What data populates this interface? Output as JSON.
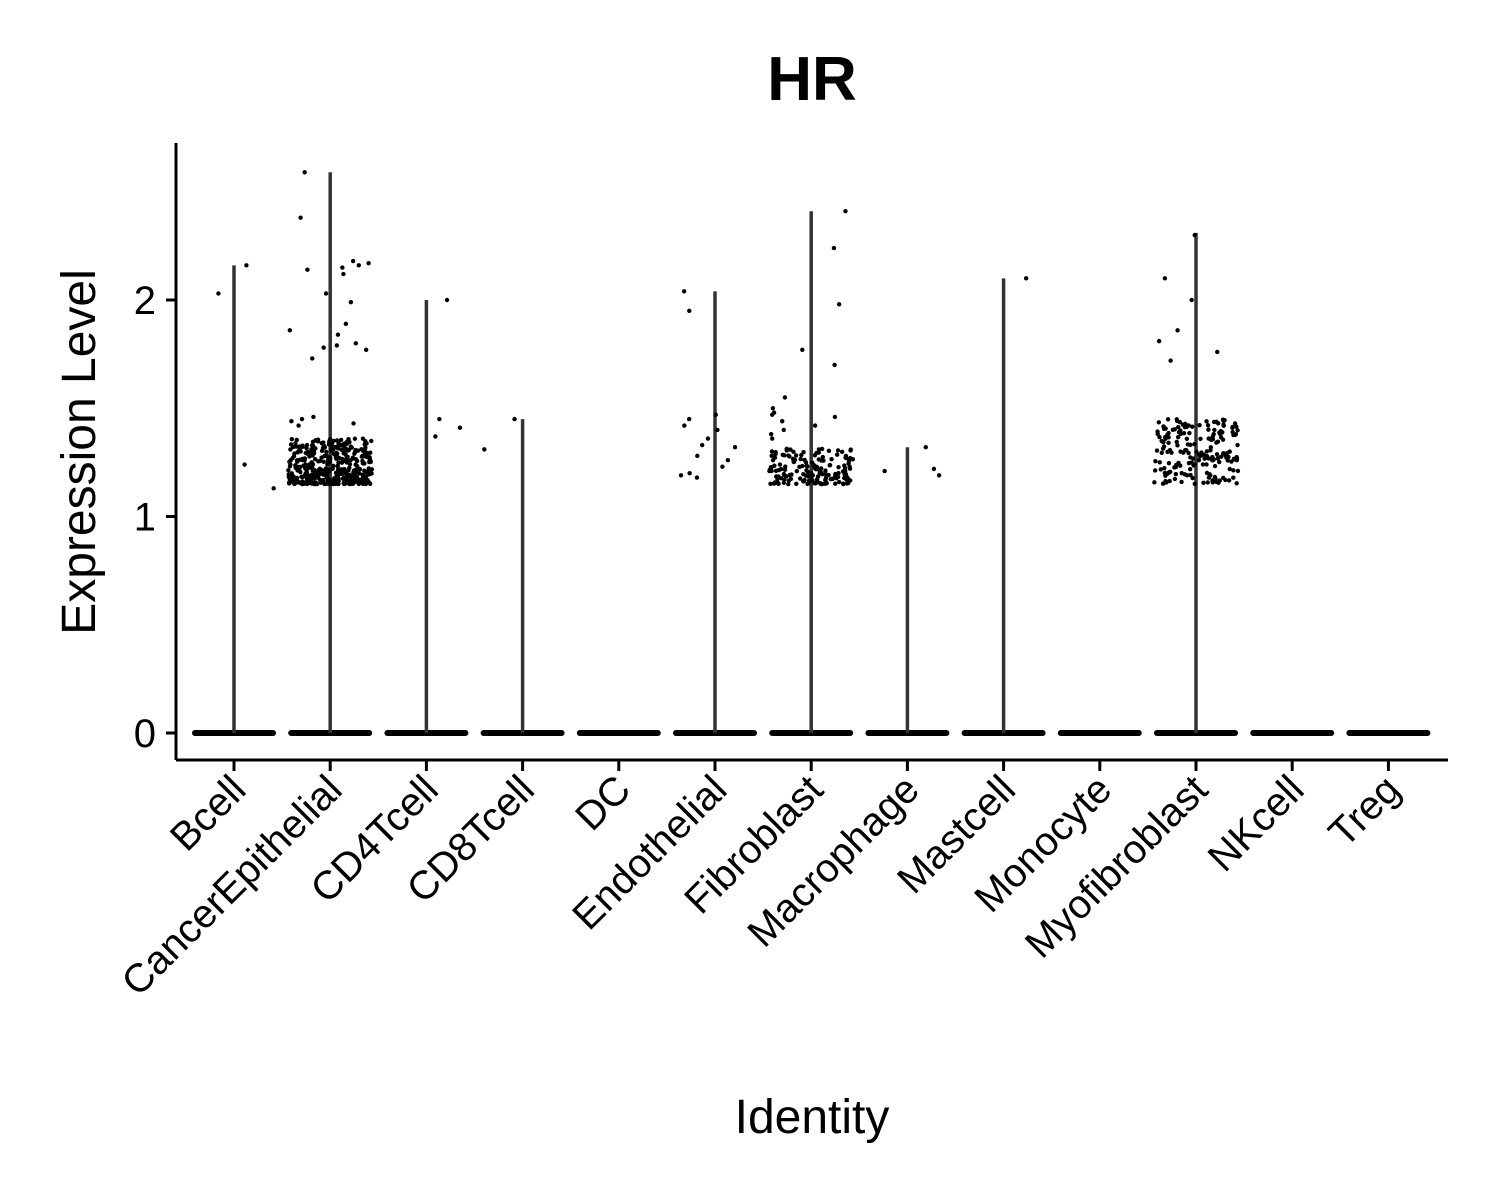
{
  "chart_data": {
    "type": "violin",
    "title": "HR",
    "xlabel": "Identity",
    "ylabel": "Expression Level",
    "categories": [
      "Bcell",
      "CancerEpithelial",
      "CD4Tcell",
      "CD8Tcell",
      "DC",
      "Endothelial",
      "Fibroblast",
      "Macrophage",
      "Mastcell",
      "Monocyte",
      "Myofibroblast",
      "NKcell",
      "Treg"
    ],
    "yticks": [
      0,
      1,
      2
    ],
    "ylim": [
      -0.13,
      2.72
    ],
    "violin_max": [
      2.16,
      2.59,
      2.0,
      1.45,
      0,
      2.04,
      2.41,
      1.32,
      2.1,
      0,
      2.31,
      0,
      0
    ],
    "nonzero_points": [
      [
        2.16,
        2.03,
        1.24,
        1.13
      ],
      "cluster",
      [
        2.0,
        1.45,
        1.41,
        1.37
      ],
      [
        1.45,
        1.31
      ],
      [],
      [
        2.04,
        1.95,
        1.45,
        1.42,
        1.4,
        1.36,
        1.33,
        1.32,
        1.28,
        1.26,
        1.23,
        1.2,
        1.19,
        1.18,
        1.47
      ],
      "cluster",
      [
        1.32,
        1.22,
        1.21,
        1.19
      ],
      [
        2.1
      ],
      [],
      "cluster",
      [],
      []
    ],
    "grid": false,
    "legend": "none"
  }
}
